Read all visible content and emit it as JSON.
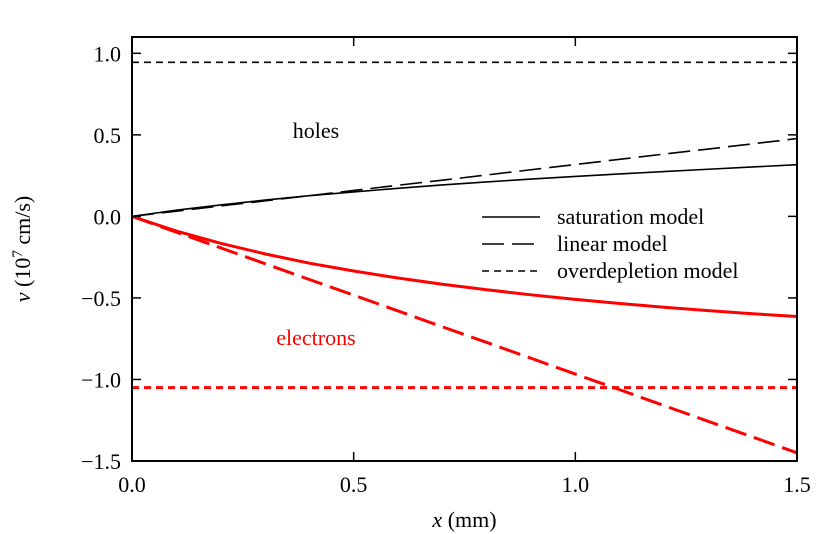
{
  "chart_data": {
    "type": "line",
    "title": "",
    "xlabel": {
      "var": "x",
      "unit": " (mm)"
    },
    "ylabel": {
      "var": "v",
      "prefix": " (10",
      "exp": "7",
      "suffix": " cm/s)"
    },
    "xlim": [
      0.0,
      1.5
    ],
    "ylim": [
      -1.5,
      1.1
    ],
    "x_ticks": [
      {
        "value": 0.0,
        "label": "0.0"
      },
      {
        "value": 0.5,
        "label": "0.5"
      },
      {
        "value": 1.0,
        "label": "1.0"
      },
      {
        "value": 1.5,
        "label": "1.5"
      }
    ],
    "y_ticks": [
      {
        "value": 1.0,
        "label": "1.0"
      },
      {
        "value": 0.5,
        "label": "0.5"
      },
      {
        "value": 0.0,
        "label": "0.0"
      },
      {
        "value": -0.5,
        "label": "−0.5"
      },
      {
        "value": -1.0,
        "label": "−1.0"
      },
      {
        "value": -1.5,
        "label": "−1.5"
      }
    ],
    "x": [
      0.0,
      0.1,
      0.2,
      0.3,
      0.4,
      0.5,
      0.6,
      0.7,
      0.8,
      0.9,
      1.0,
      1.1,
      1.2,
      1.3,
      1.4,
      1.5
    ],
    "series": [
      {
        "name": "holes-saturation",
        "model": "saturation",
        "carrier": "holes",
        "color": "#000000",
        "values": [
          0.0,
          0.038,
          0.07,
          0.1,
          0.127,
          0.15,
          0.172,
          0.193,
          0.211,
          0.229,
          0.245,
          0.26,
          0.275,
          0.289,
          0.303,
          0.317
        ]
      },
      {
        "name": "holes-linear",
        "model": "linear",
        "carrier": "holes",
        "color": "#000000",
        "values": [
          0.0,
          0.032,
          0.064,
          0.095,
          0.127,
          0.159,
          0.191,
          0.222,
          0.254,
          0.286,
          0.318,
          0.35,
          0.382,
          0.413,
          0.445,
          0.477
        ]
      },
      {
        "name": "holes-overdepletion",
        "model": "overdepletion",
        "carrier": "holes",
        "color": "#000000",
        "values": [
          0.945,
          0.945,
          0.945,
          0.945,
          0.945,
          0.945,
          0.945,
          0.945,
          0.945,
          0.945,
          0.945,
          0.945,
          0.945,
          0.945,
          0.945,
          0.945
        ]
      },
      {
        "name": "electrons-saturation",
        "model": "saturation",
        "carrier": "electrons",
        "color": "#ff0000",
        "values": [
          0.0,
          -0.09,
          -0.165,
          -0.23,
          -0.287,
          -0.335,
          -0.378,
          -0.416,
          -0.45,
          -0.481,
          -0.509,
          -0.534,
          -0.557,
          -0.578,
          -0.597,
          -0.614
        ]
      },
      {
        "name": "electrons-linear",
        "model": "linear",
        "carrier": "electrons",
        "color": "#ff0000",
        "values": [
          0.0,
          -0.097,
          -0.193,
          -0.29,
          -0.387,
          -0.483,
          -0.58,
          -0.677,
          -0.773,
          -0.87,
          -0.967,
          -1.063,
          -1.16,
          -1.257,
          -1.353,
          -1.45
        ]
      },
      {
        "name": "electrons-overdepletion",
        "model": "overdepletion",
        "carrier": "electrons",
        "color": "#ff0000",
        "values": [
          -1.05,
          -1.05,
          -1.05,
          -1.05,
          -1.05,
          -1.05,
          -1.05,
          -1.05,
          -1.05,
          -1.05,
          -1.05,
          -1.05,
          -1.05,
          -1.05,
          -1.05,
          -1.05
        ]
      }
    ],
    "legend": {
      "placement": "center-right",
      "entries": [
        {
          "model": "saturation",
          "label": "saturation model"
        },
        {
          "model": "linear",
          "label": "linear model"
        },
        {
          "model": "overdepletion",
          "label": "overdepletion model"
        }
      ]
    },
    "annotations": [
      {
        "name": "holes-annotation",
        "text": "holes",
        "x": 0.415,
        "y": 0.48,
        "color": "#000000"
      },
      {
        "name": "electrons-annotation",
        "text": "electrons",
        "x": 0.415,
        "y": -0.79,
        "color": "#ff0000"
      }
    ],
    "grid": false
  }
}
